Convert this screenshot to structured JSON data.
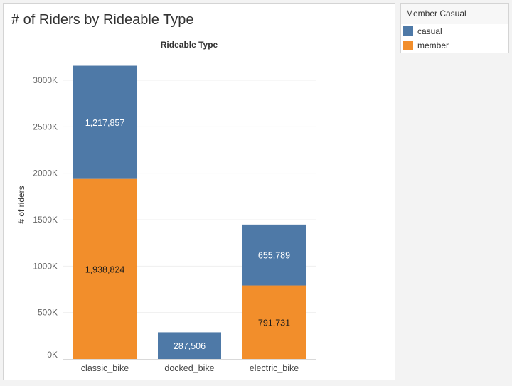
{
  "chart_data": {
    "type": "bar",
    "stacked": true,
    "title": "# of Riders by Rideable Type",
    "xlabel": "Rideable Type",
    "ylabel": "# of riders",
    "categories": [
      "classic_bike",
      "docked_bike",
      "electric_bike"
    ],
    "series": [
      {
        "name": "member",
        "color": "#f28e2b",
        "values": [
          1938824,
          0,
          791731
        ],
        "labels": [
          "1,938,824",
          "",
          "791,731"
        ]
      },
      {
        "name": "casual",
        "color": "#4e79a7",
        "values": [
          1217857,
          287506,
          655789
        ],
        "labels": [
          "1,217,857",
          "287,506",
          "655,789"
        ]
      }
    ],
    "ylim": [
      0,
      3300000
    ],
    "yticks": [
      0,
      500000,
      1000000,
      1500000,
      2000000,
      2500000,
      3000000
    ],
    "ytick_labels": [
      "0K",
      "500K",
      "1000K",
      "1500K",
      "2000K",
      "2500K",
      "3000K"
    ],
    "grid": true,
    "legend": {
      "title": "Member Casual",
      "placement": "top-right",
      "items": [
        {
          "name": "casual",
          "color": "#4e79a7"
        },
        {
          "name": "member",
          "color": "#f28e2b"
        }
      ]
    }
  }
}
